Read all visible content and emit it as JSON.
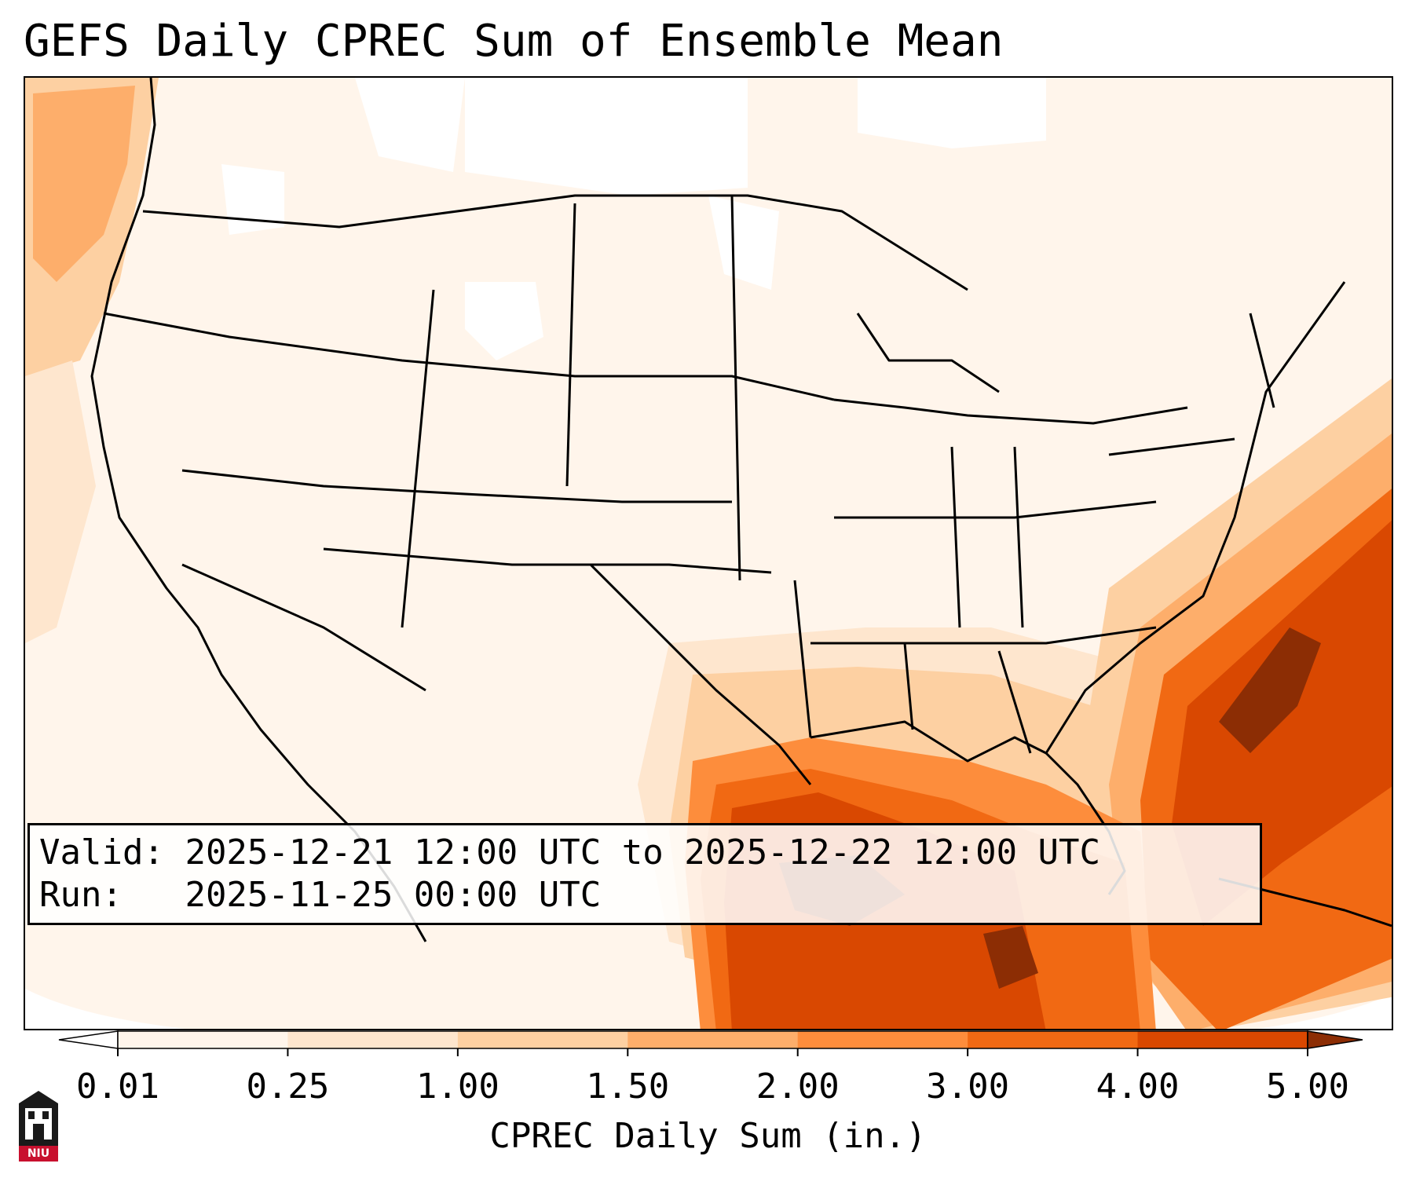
{
  "title": "GEFS Daily CPREC Sum of Ensemble Mean",
  "info": {
    "valid_label": "Valid:",
    "valid_value": "2025-12-21 12:00 UTC to 2025-12-22 12:00 UTC",
    "run_label": "Run:  ",
    "run_value": "2025-11-25 00:00 UTC"
  },
  "colorbar": {
    "label": "CPREC Daily Sum (in.)",
    "ticks": [
      "0.01",
      "0.25",
      "1.00",
      "1.50",
      "2.00",
      "3.00",
      "4.00",
      "5.00"
    ],
    "colors": [
      "#fff5eb",
      "#fee6ce",
      "#fdd0a2",
      "#fdae6b",
      "#fd8d3c",
      "#f16913",
      "#d94801",
      "#8c2d04"
    ],
    "extend_min_color": "#ffffff",
    "extend_max_color": "#8c2d04"
  },
  "map": {
    "projection": "Lambert conformal conic, CONUS",
    "variable": "CPREC daily sum",
    "heavy_precip_regions": [
      "Gulf of Mexico",
      "Western Atlantic off Southeast US"
    ],
    "moderate_precip_regions": [
      "Gulf Coast states",
      "Florida",
      "Northeast Pacific"
    ]
  },
  "logo": {
    "text": "NIU"
  }
}
